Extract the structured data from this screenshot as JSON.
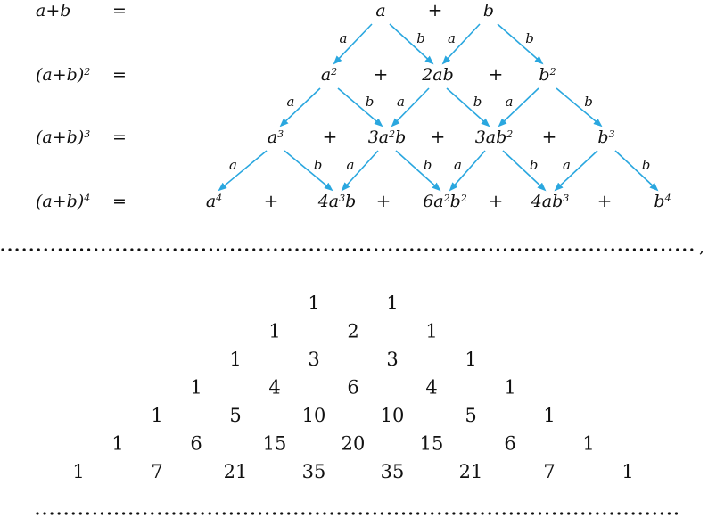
{
  "expansion": {
    "rows": [
      {
        "lhs": {
          "base": "a+b",
          "exp": ""
        },
        "eq": "=",
        "terms": [
          {
            "parts": [
              {
                "t": "a"
              }
            ]
          },
          {
            "plus": "+"
          },
          {
            "parts": [
              {
                "t": "b"
              }
            ]
          }
        ]
      },
      {
        "lhs": {
          "base": "(a+b)",
          "exp": "2"
        },
        "eq": "=",
        "terms": [
          {
            "parts": [
              {
                "t": "a"
              },
              {
                "s": "2"
              }
            ]
          },
          {
            "plus": "+"
          },
          {
            "parts": [
              {
                "t": "2ab"
              }
            ]
          },
          {
            "plus": "+"
          },
          {
            "parts": [
              {
                "t": "b"
              },
              {
                "s": "2"
              }
            ]
          }
        ]
      },
      {
        "lhs": {
          "base": "(a+b)",
          "exp": "3"
        },
        "eq": "=",
        "terms": [
          {
            "parts": [
              {
                "t": "a"
              },
              {
                "s": "3"
              }
            ]
          },
          {
            "plus": "+"
          },
          {
            "parts": [
              {
                "t": "3a"
              },
              {
                "s": "2"
              },
              {
                "t": "b"
              }
            ]
          },
          {
            "plus": "+"
          },
          {
            "parts": [
              {
                "t": "3ab"
              },
              {
                "s": "2"
              }
            ]
          },
          {
            "plus": "+"
          },
          {
            "parts": [
              {
                "t": "b"
              },
              {
                "s": "3"
              }
            ]
          }
        ]
      },
      {
        "lhs": {
          "base": "(a+b)",
          "exp": "4"
        },
        "eq": "=",
        "terms": [
          {
            "parts": [
              {
                "t": "a"
              },
              {
                "s": "4"
              }
            ]
          },
          {
            "plus": "+"
          },
          {
            "parts": [
              {
                "t": "4a"
              },
              {
                "s": "3"
              },
              {
                "t": "b"
              }
            ]
          },
          {
            "plus": "+"
          },
          {
            "parts": [
              {
                "t": "6a"
              },
              {
                "s": "2"
              },
              {
                "t": "b"
              },
              {
                "s": "2"
              }
            ]
          },
          {
            "plus": "+"
          },
          {
            "parts": [
              {
                "t": "4ab"
              },
              {
                "s": "3"
              }
            ]
          },
          {
            "plus": "+"
          },
          {
            "parts": [
              {
                "t": "b"
              },
              {
                "s": "4"
              }
            ]
          }
        ]
      }
    ],
    "arrow_labels": {
      "left": "a",
      "right": "b"
    },
    "arrow_color": "#2aa7df",
    "separator_comma": ","
  },
  "pascal": {
    "rows": [
      [
        "1",
        "1"
      ],
      [
        "1",
        "2",
        "1"
      ],
      [
        "1",
        "3",
        "3",
        "1"
      ],
      [
        "1",
        "4",
        "6",
        "4",
        "1"
      ],
      [
        "1",
        "5",
        "10",
        "10",
        "5",
        "1"
      ],
      [
        "1",
        "6",
        "15",
        "20",
        "15",
        "6",
        "1"
      ],
      [
        "1",
        "7",
        "21",
        "35",
        "35",
        "21",
        "7",
        "1"
      ]
    ]
  }
}
